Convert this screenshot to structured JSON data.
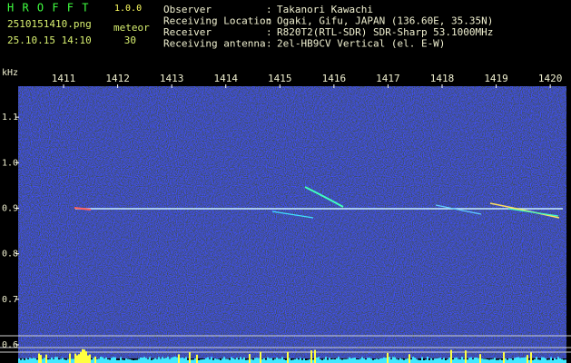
{
  "header": {
    "app": "H R O F F T",
    "version": "1.0.0",
    "file": "2510151410.png",
    "datetime": "25.10.15 14:10",
    "mode": "meteor",
    "count": 30,
    "separator": ":",
    "info": [
      {
        "label": "Observer",
        "value": "Takanori Kawachi"
      },
      {
        "label": "Receiving Location",
        "value": "Ogaki, Gifu, JAPAN (136.60E, 35.35N)"
      },
      {
        "label": "Receiver",
        "value": "R820T2(RTL-SDR) SDR-Sharp 53.1000MHz"
      },
      {
        "label": "Receiving antenna",
        "value": "2el-HB9CV Vertical (el. E-W)"
      }
    ]
  },
  "chart_data": {
    "type": "spectrogram",
    "y_label": "kHz",
    "xlim": [
      1410.16,
      1420.3
    ],
    "xticks": [
      1411,
      1412,
      1413,
      1414,
      1415,
      1416,
      1417,
      1418,
      1419,
      1420
    ],
    "ylim": [
      0.57,
      1.168
    ],
    "yticks": [
      0.6,
      0.7,
      0.8,
      0.9,
      {
        "value": 1,
        "label": "1.0"
      },
      1.1
    ]
  }
}
